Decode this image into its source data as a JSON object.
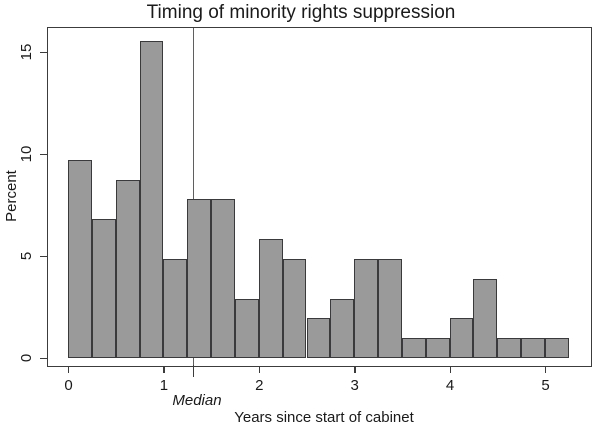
{
  "title": "Timing of minority rights suppression",
  "y_axis": {
    "label": "Percent"
  },
  "x_axis": {
    "label": "Years since start of cabinet"
  },
  "chart_data": {
    "type": "bar",
    "subtype": "histogram",
    "title": "Timing of minority rights suppression",
    "xlabel": "Years since start of cabinet",
    "ylabel": "Percent",
    "bin_width": 0.25,
    "bin_starts": [
      0.0,
      0.25,
      0.5,
      0.75,
      1.0,
      1.25,
      1.5,
      1.75,
      2.0,
      2.25,
      2.5,
      2.75,
      3.0,
      3.25,
      3.5,
      3.75,
      4.0,
      4.25,
      4.5,
      4.75,
      5.0
    ],
    "values": [
      9.71,
      6.8,
      8.74,
      15.53,
      4.85,
      7.77,
      7.77,
      2.91,
      5.83,
      4.85,
      1.94,
      2.91,
      4.85,
      4.85,
      0.97,
      0.97,
      1.94,
      3.88,
      0.97,
      0.97,
      0.97
    ],
    "x_ticks": [
      0,
      1,
      2,
      3,
      4,
      5
    ],
    "y_ticks": [
      0,
      5,
      10,
      15
    ],
    "xlim": [
      0,
      5.5
    ],
    "ylim": [
      0,
      16.5
    ],
    "grid": false,
    "legend": "none",
    "bar_fill_color": "#9a9a9b",
    "bar_border_color": "#3a3a3c",
    "annotations": [
      {
        "type": "vline",
        "x": 1.31,
        "label": "Median"
      }
    ]
  }
}
